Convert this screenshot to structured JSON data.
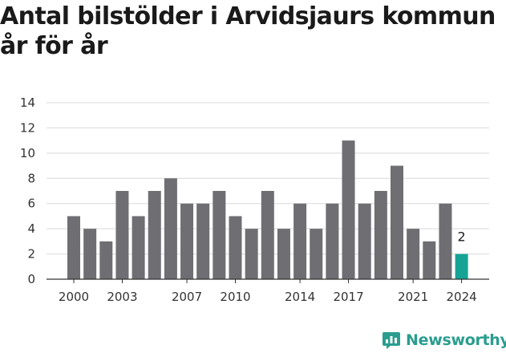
{
  "header": {
    "title": "Antal bilstölder i Arvidsjaurs kommun år för år"
  },
  "brand": {
    "name": "Newsworthy",
    "icon": "newsworthy-logo-icon"
  },
  "colors": {
    "bar": "#6f6e73",
    "highlight": "#14a394",
    "grid": "#d9d9d9",
    "axis": "#333333",
    "brand": "#2a9d8f"
  },
  "chart_data": {
    "type": "bar",
    "title": "Antal bilstölder i Arvidsjaurs kommun år för år",
    "xlabel": "",
    "ylabel": "",
    "categories": [
      "2000",
      "2001",
      "2002",
      "2003",
      "2004",
      "2005",
      "2006",
      "2007",
      "2008",
      "2009",
      "2010",
      "2011",
      "2012",
      "2013",
      "2014",
      "2015",
      "2016",
      "2017",
      "2018",
      "2019",
      "2020",
      "2021",
      "2022",
      "2023",
      "2024"
    ],
    "values": [
      5,
      4,
      3,
      7,
      5,
      7,
      8,
      6,
      6,
      7,
      5,
      4,
      7,
      4,
      6,
      4,
      6,
      11,
      6,
      7,
      9,
      4,
      3,
      6,
      2
    ],
    "x_tick_labels": [
      "2000",
      "2003",
      "2007",
      "2010",
      "2014",
      "2017",
      "2021",
      "2024"
    ],
    "y_ticks": [
      0,
      2,
      4,
      6,
      8,
      10,
      12,
      14
    ],
    "ylim": [
      0,
      14
    ],
    "grid": true,
    "highlight": {
      "category": "2024",
      "value_label": "2"
    }
  }
}
